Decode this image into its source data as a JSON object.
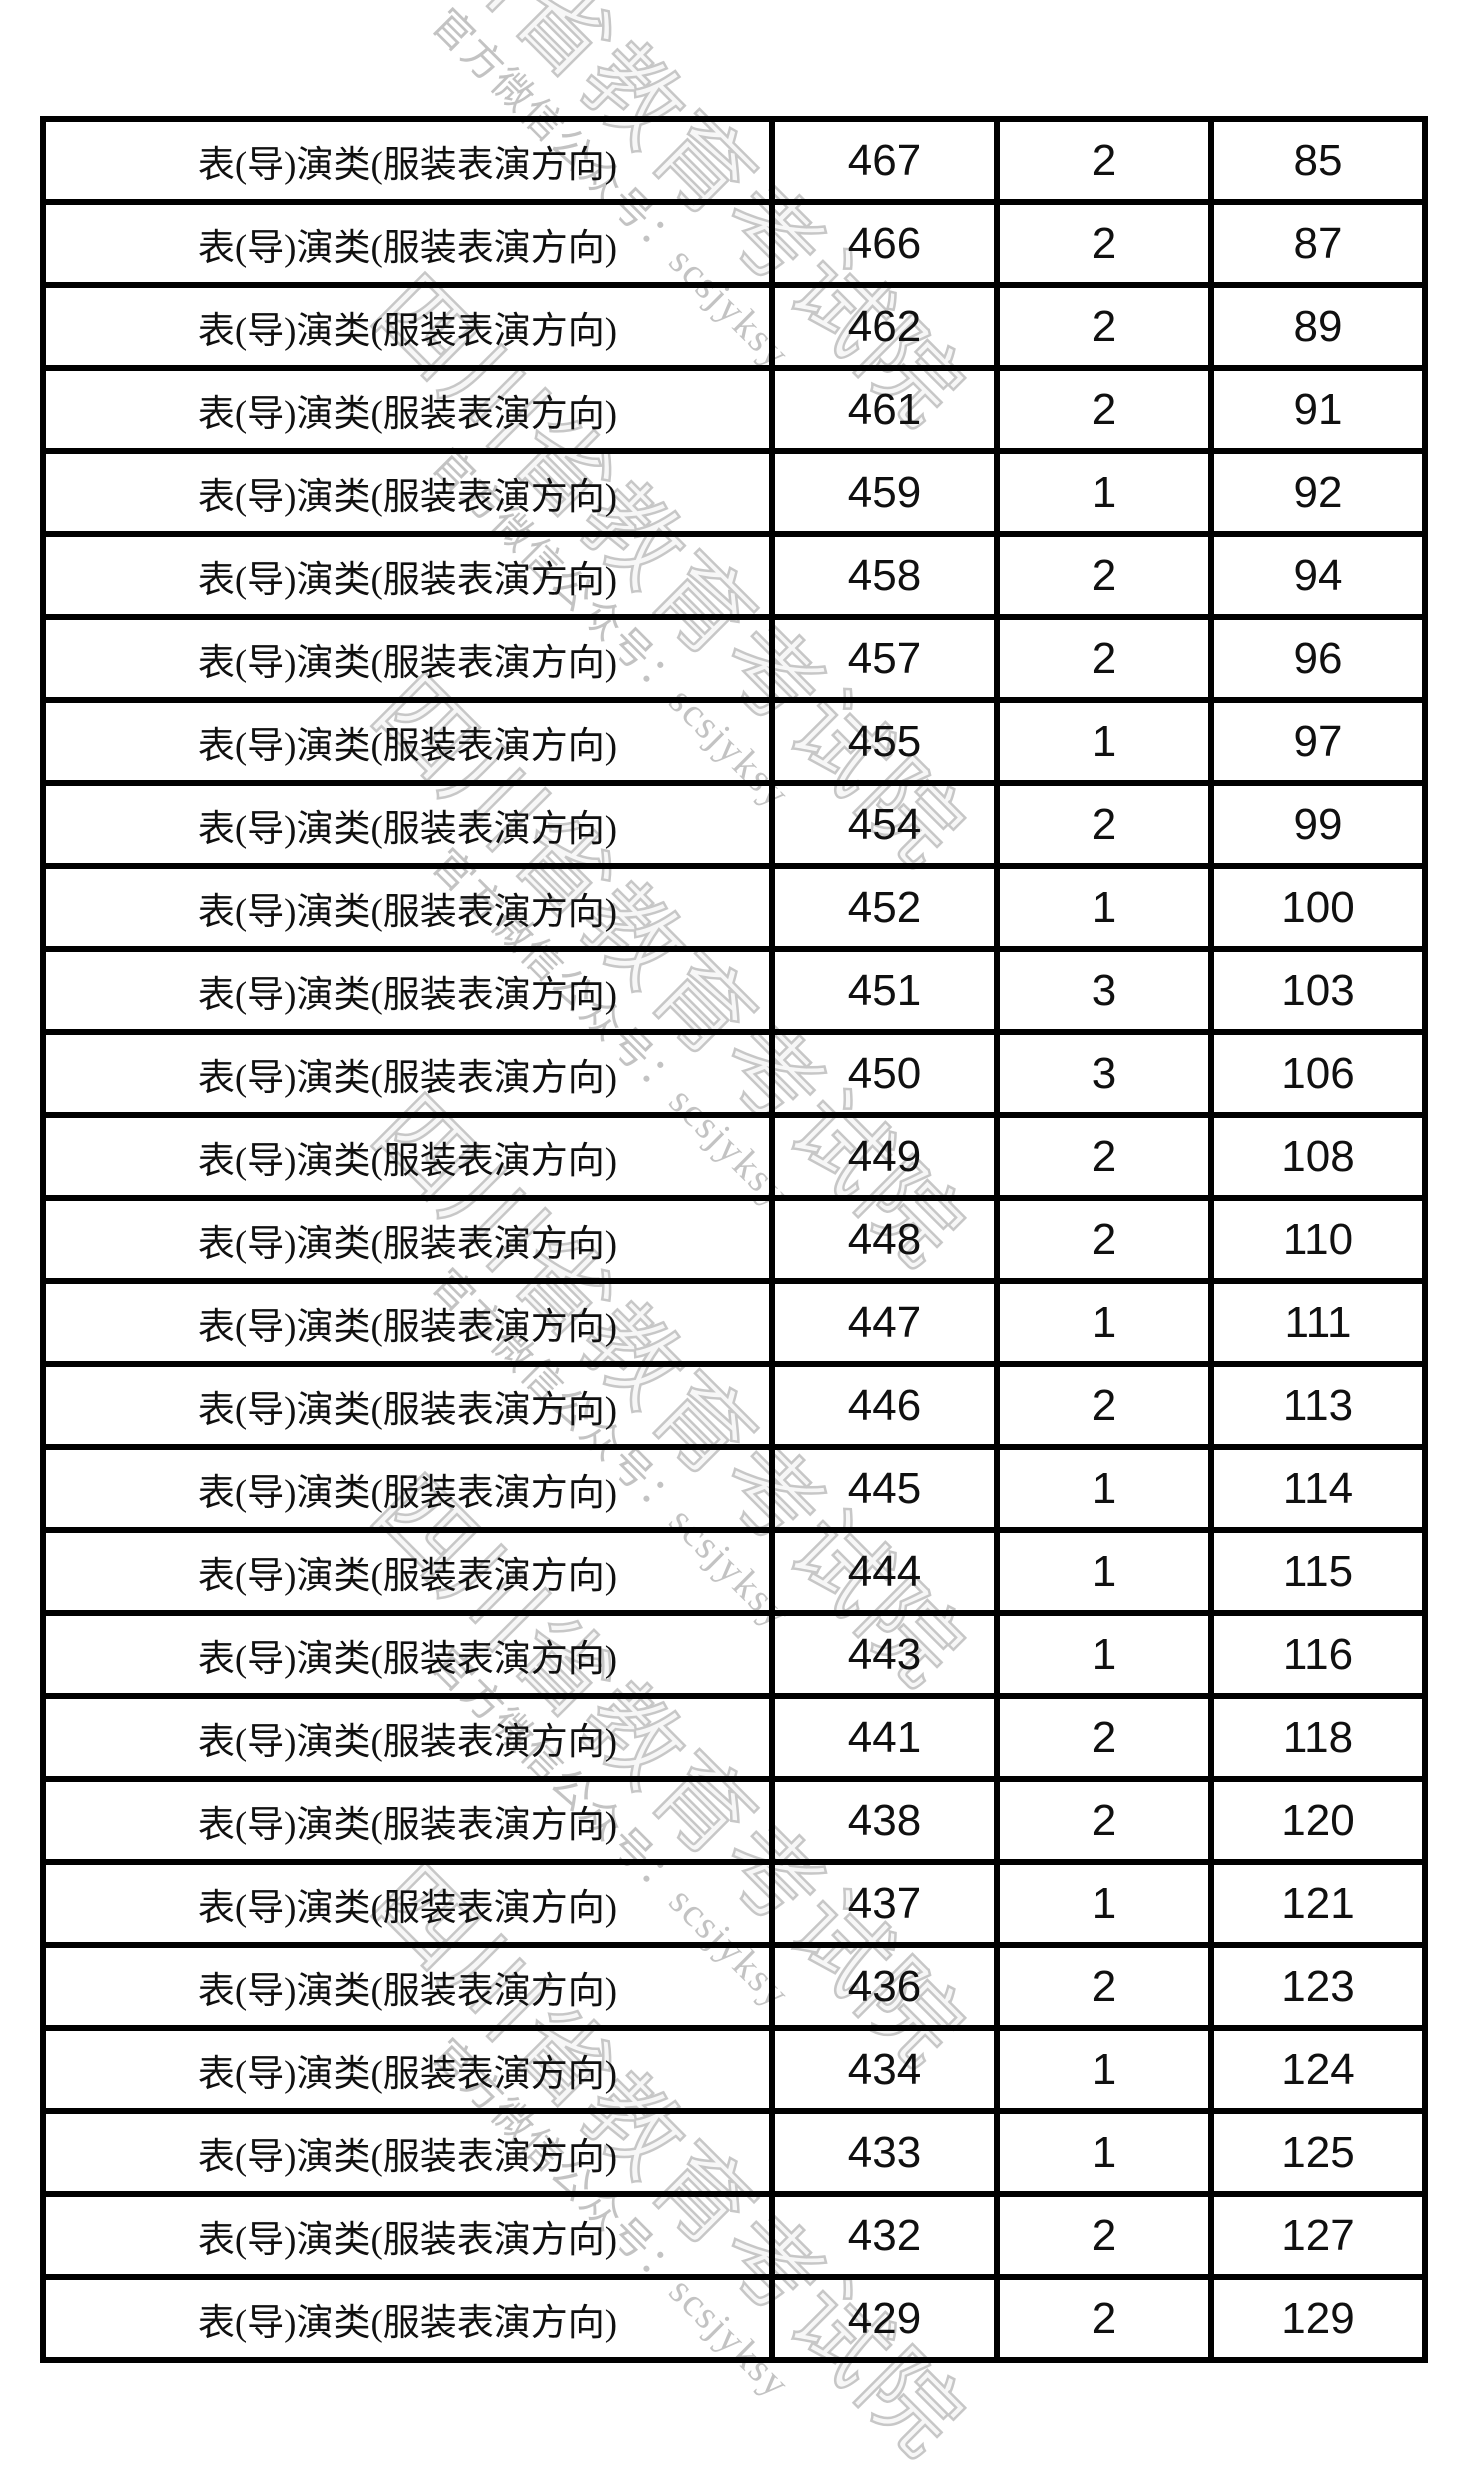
{
  "colors": {
    "background": "#ffffff",
    "table_border": "#000000",
    "text": "#101010",
    "watermark": "#c7c7c7"
  },
  "watermark": {
    "big": "四川省教育考试院",
    "small": "官方微信公众号：scsjyksy"
  },
  "table": {
    "rows": [
      [
        "表(导)演类(服装表演方向)",
        "467",
        "2",
        "85"
      ],
      [
        "表(导)演类(服装表演方向)",
        "466",
        "2",
        "87"
      ],
      [
        "表(导)演类(服装表演方向)",
        "462",
        "2",
        "89"
      ],
      [
        "表(导)演类(服装表演方向)",
        "461",
        "2",
        "91"
      ],
      [
        "表(导)演类(服装表演方向)",
        "459",
        "1",
        "92"
      ],
      [
        "表(导)演类(服装表演方向)",
        "458",
        "2",
        "94"
      ],
      [
        "表(导)演类(服装表演方向)",
        "457",
        "2",
        "96"
      ],
      [
        "表(导)演类(服装表演方向)",
        "455",
        "1",
        "97"
      ],
      [
        "表(导)演类(服装表演方向)",
        "454",
        "2",
        "99"
      ],
      [
        "表(导)演类(服装表演方向)",
        "452",
        "1",
        "100"
      ],
      [
        "表(导)演类(服装表演方向)",
        "451",
        "3",
        "103"
      ],
      [
        "表(导)演类(服装表演方向)",
        "450",
        "3",
        "106"
      ],
      [
        "表(导)演类(服装表演方向)",
        "449",
        "2",
        "108"
      ],
      [
        "表(导)演类(服装表演方向)",
        "448",
        "2",
        "110"
      ],
      [
        "表(导)演类(服装表演方向)",
        "447",
        "1",
        "111"
      ],
      [
        "表(导)演类(服装表演方向)",
        "446",
        "2",
        "113"
      ],
      [
        "表(导)演类(服装表演方向)",
        "445",
        "1",
        "114"
      ],
      [
        "表(导)演类(服装表演方向)",
        "444",
        "1",
        "115"
      ],
      [
        "表(导)演类(服装表演方向)",
        "443",
        "1",
        "116"
      ],
      [
        "表(导)演类(服装表演方向)",
        "441",
        "2",
        "118"
      ],
      [
        "表(导)演类(服装表演方向)",
        "438",
        "2",
        "120"
      ],
      [
        "表(导)演类(服装表演方向)",
        "437",
        "1",
        "121"
      ],
      [
        "表(导)演类(服装表演方向)",
        "436",
        "2",
        "123"
      ],
      [
        "表(导)演类(服装表演方向)",
        "434",
        "1",
        "124"
      ],
      [
        "表(导)演类(服装表演方向)",
        "433",
        "1",
        "125"
      ],
      [
        "表(导)演类(服装表演方向)",
        "432",
        "2",
        "127"
      ],
      [
        "表(导)演类(服装表演方向)",
        "429",
        "2",
        "129"
      ]
    ]
  }
}
